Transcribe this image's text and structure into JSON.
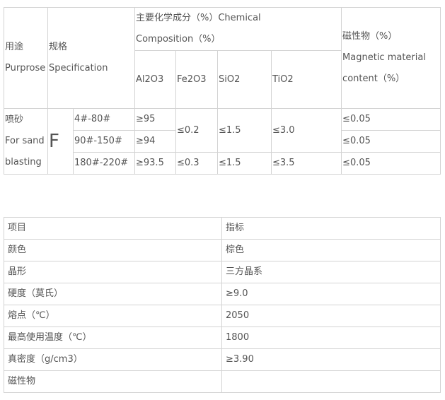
{
  "composition_table": {
    "header": {
      "purpose_cn": "用途",
      "purpose_en": "Purprose",
      "spec_cn": "规格",
      "spec_en": "Specification",
      "chem_line1": "主要化学成分（%）Chemical",
      "chem_line2": "Composition（%）",
      "magnetic_line1": "磁性物（%）",
      "magnetic_line2": "Magnetic material",
      "magnetic_line3": "content（%）",
      "columns": [
        "Al2O3",
        "Fe2O3",
        "SiO2",
        "TiO2"
      ]
    },
    "purpose_cell": {
      "line1": "喷砂",
      "line2": "For sand",
      "line3": "blasting"
    },
    "grade": "F",
    "rows": [
      {
        "size": "4#-80#",
        "al2o3": "≥95",
        "fe2o3": "≤0.2",
        "sio2": "≤1.5",
        "tio2": "≤3.0",
        "magnetic": "≤0.05"
      },
      {
        "size": "90#-150#",
        "al2o3": "≥94",
        "magnetic": "≤0.05"
      },
      {
        "size": "180#-220#",
        "al2o3": "≥93.5",
        "fe2o3": "≤0.3",
        "sio2": "≤1.5",
        "tio2": "≤3.5",
        "magnetic": "≤0.05"
      }
    ]
  },
  "property_table": {
    "header": {
      "item": "项目",
      "value": "指标"
    },
    "rows": [
      {
        "item": "颜色",
        "value": "棕色"
      },
      {
        "item": "晶形",
        "value": "三方晶系"
      },
      {
        "item": "硬度（莫氏）",
        "value": "≥9.0"
      },
      {
        "item": "熔点（℃）",
        "value": "2050"
      },
      {
        "item": "最高使用温度（℃）",
        "value": "1800"
      },
      {
        "item": "真密度（g/cm3）",
        "value": "≥3.90"
      },
      {
        "item": "磁性物",
        "value": ""
      }
    ]
  }
}
